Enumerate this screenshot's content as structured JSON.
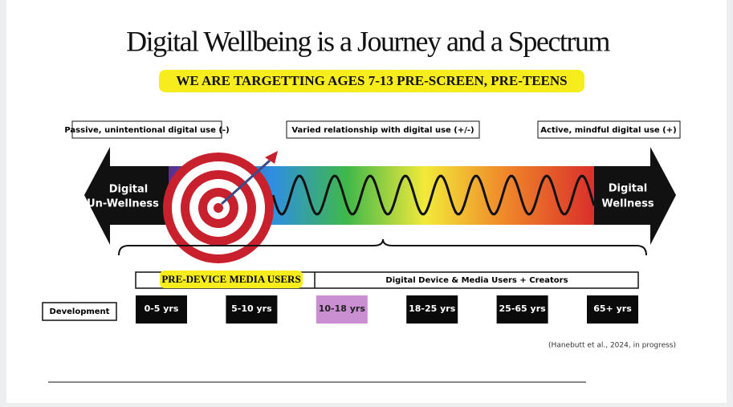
{
  "title": "Digital Wellbeing is a Journey and a Spectrum",
  "subtitle": "WE ARE TARGETTING AGES 7-13 PRE-SCREEN, PRE-TEENS",
  "scale_labels": [
    "Passive, unintentional digital use (-)",
    "Varied relationship with digital use (+/-)",
    "Active, mindful digital use (+)"
  ],
  "left_end": [
    "Digital",
    "Un-Wellness"
  ],
  "right_end": [
    "Digital",
    "Wellness"
  ],
  "user_groups": [
    "PRE-DEVICE MEDIA USERS",
    "Digital Device & Media Users + Creators"
  ],
  "development": {
    "label": "Development",
    "stages": [
      "0-5 yrs",
      "5-10 yrs",
      "10-18 yrs",
      "18-25 yrs",
      "25-65 yrs",
      "65+ yrs"
    ]
  },
  "citation": "(Hanebutt et al., 2024, in progress)"
}
